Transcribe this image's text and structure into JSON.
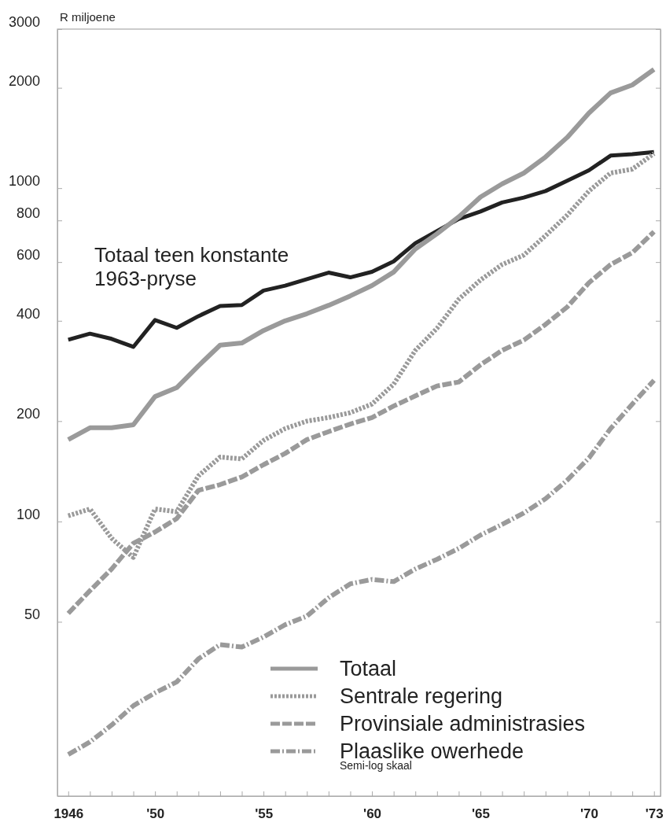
{
  "chart_data": {
    "type": "line",
    "ylabel": "R miljoene",
    "x": [
      1946,
      1947,
      1948,
      1949,
      1950,
      1951,
      1952,
      1953,
      1954,
      1955,
      1956,
      1957,
      1958,
      1959,
      1960,
      1961,
      1962,
      1963,
      1964,
      1965,
      1966,
      1967,
      1968,
      1969,
      1970,
      1971,
      1972,
      1973
    ],
    "series": [
      {
        "name": "Totaal teen konstante 1963-pryse",
        "color": "#222222",
        "line_style": "solid",
        "values": [
          351,
          366,
          353,
          334,
          402,
          381,
          413,
          443,
          446,
          493,
          510,
          533,
          558,
          540,
          561,
          603,
          684,
          744,
          808,
          851,
          906,
          937,
          980,
          1052,
          1131,
          1252,
          1264,
          1283
        ]
      },
      {
        "name": "Totaal",
        "color": "#9a9a9a",
        "line_style": "solid",
        "values": [
          176,
          191,
          191,
          195,
          237,
          252,
          293,
          338,
          343,
          374,
          400,
          420,
          445,
          475,
          510,
          560,
          657,
          730,
          820,
          940,
          1030,
          1110,
          1240,
          1420,
          1680,
          1930,
          2040,
          2270
        ]
      },
      {
        "name": "Sentrale regering",
        "color": "#9a9a9a",
        "line_style": "dotted",
        "values": [
          104,
          109,
          89,
          78,
          109,
          107,
          137,
          156,
          154,
          175,
          190,
          200,
          205,
          212,
          225,
          258,
          326,
          380,
          464,
          530,
          590,
          630,
          720,
          830,
          980,
          1110,
          1140,
          1270
        ]
      },
      {
        "name": "Provinsiale administrasies",
        "color": "#9a9a9a",
        "line_style": "dashed",
        "values": [
          53,
          62,
          72,
          86,
          93,
          102,
          124,
          129,
          136,
          148,
          160,
          176,
          186,
          196,
          205,
          222,
          238,
          255,
          262,
          295,
          326,
          350,
          390,
          440,
          520,
          590,
          640,
          740
        ]
      },
      {
        "name": "Plaaslike owerhede",
        "color": "#9a9a9a",
        "line_style": "dashdot",
        "values": [
          20,
          21.8,
          24.5,
          28,
          30.6,
          33,
          38.7,
          42.7,
          42,
          45,
          49,
          52,
          59,
          65,
          67,
          66,
          72,
          77,
          83,
          91,
          98,
          106,
          117,
          133,
          155,
          190,
          225,
          265
        ]
      }
    ],
    "log": "y",
    "ylim": [
      15,
      3000
    ],
    "yticks": [
      50,
      100,
      200,
      400,
      600,
      800,
      1000,
      2000,
      3000
    ],
    "xlim": [
      1945.5,
      1973.3
    ],
    "xticks": [
      {
        "value": 1946,
        "label": "1946"
      },
      {
        "value": 1947,
        "label": null
      },
      {
        "value": 1948,
        "label": null
      },
      {
        "value": 1949,
        "label": null
      },
      {
        "value": 1950,
        "label": "'50"
      },
      {
        "value": 1951,
        "label": null
      },
      {
        "value": 1952,
        "label": null
      },
      {
        "value": 1953,
        "label": null
      },
      {
        "value": 1954,
        "label": null
      },
      {
        "value": 1955,
        "label": "'55"
      },
      {
        "value": 1956,
        "label": null
      },
      {
        "value": 1957,
        "label": null
      },
      {
        "value": 1958,
        "label": null
      },
      {
        "value": 1959,
        "label": null
      },
      {
        "value": 1960,
        "label": "'60"
      },
      {
        "value": 1961,
        "label": null
      },
      {
        "value": 1962,
        "label": null
      },
      {
        "value": 1963,
        "label": null
      },
      {
        "value": 1964,
        "label": null
      },
      {
        "value": 1965,
        "label": "'65"
      },
      {
        "value": 1966,
        "label": null
      },
      {
        "value": 1967,
        "label": null
      },
      {
        "value": 1968,
        "label": null
      },
      {
        "value": 1969,
        "label": null
      },
      {
        "value": 1970,
        "label": "'70"
      },
      {
        "value": 1971,
        "label": null
      },
      {
        "value": 1972,
        "label": null
      },
      {
        "value": 1973,
        "label": "'73"
      }
    ],
    "legend": "bottom right",
    "grid": false,
    "annotations": [
      "Semi-log skaal"
    ]
  }
}
